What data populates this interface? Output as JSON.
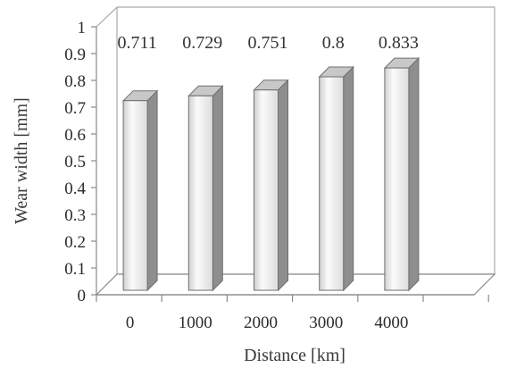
{
  "chart_data": {
    "type": "bar",
    "categories": [
      "0",
      "1000",
      "2000",
      "3000",
      "4000"
    ],
    "values": [
      0.711,
      0.729,
      0.751,
      0.8,
      0.833
    ],
    "data_labels": [
      "0.711",
      "0.729",
      "0.751",
      "0.8",
      "0.833"
    ],
    "y_ticks": [
      "0",
      "0.1",
      "0.2",
      "0.3",
      "0.4",
      "0.5",
      "0.6",
      "0.7",
      "0.8",
      "0.9",
      "1"
    ],
    "xlabel": "Distance [km]",
    "ylabel": "Wear width  [mm]",
    "ylim": [
      0,
      1
    ],
    "style": "3d-column",
    "grid": false,
    "colors": {
      "bar_front": "#eaeaea",
      "bar_side": "#8e8e8e",
      "bar_top": "#c8c8c8",
      "axis": "#8a8a8a"
    }
  }
}
